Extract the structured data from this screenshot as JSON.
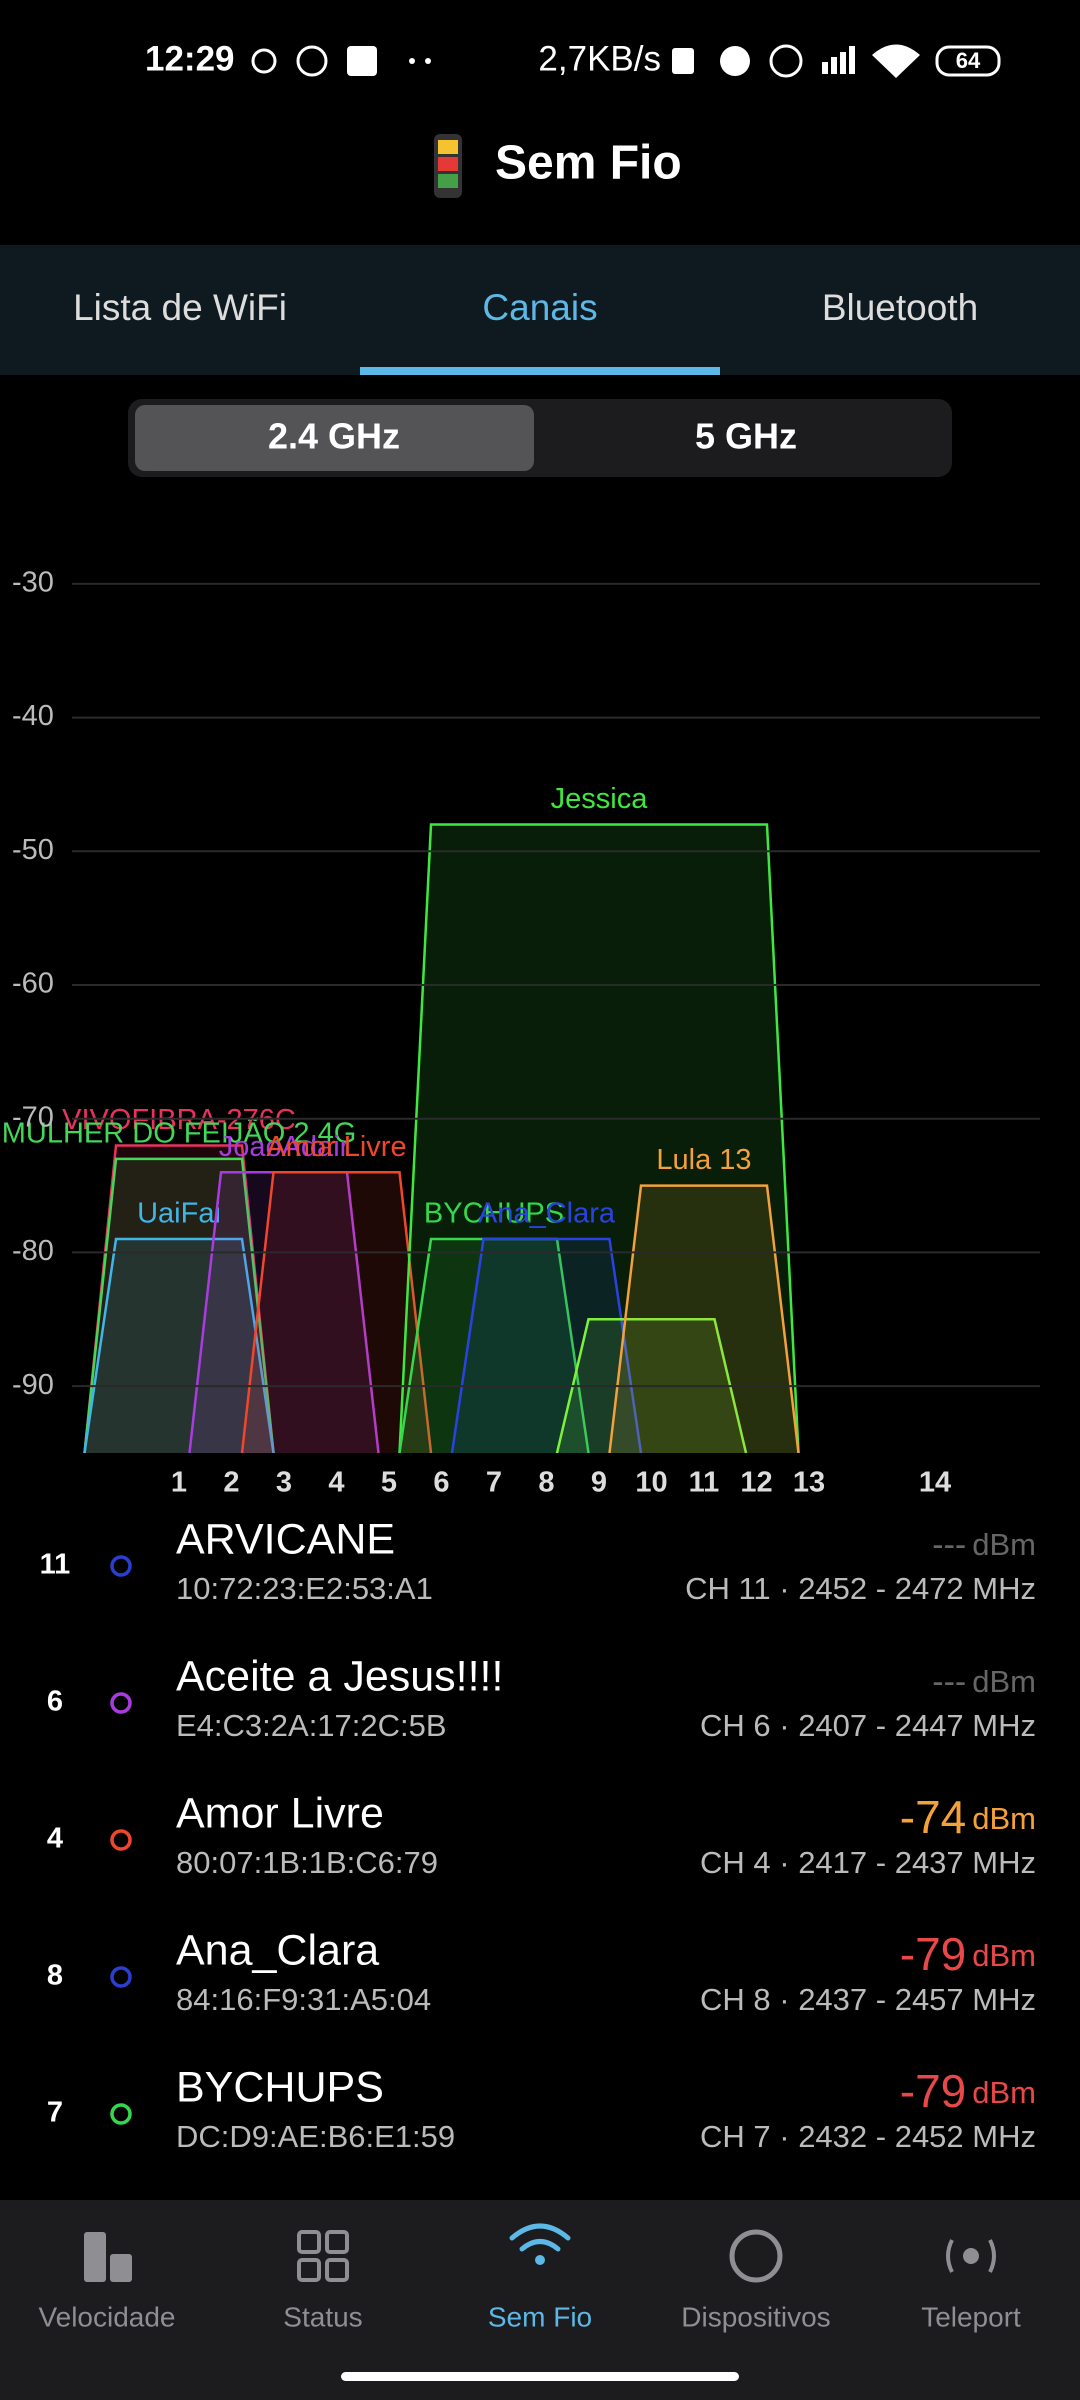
{
  "status_bar": {
    "time": "12:29",
    "speed": "2,7KB/s",
    "battery": "64"
  },
  "header": {
    "title": "Sem Fio"
  },
  "tabs": [
    "Lista de WiFi",
    "Canais",
    "Bluetooth"
  ],
  "bands": [
    "2.4 GHz",
    "5 GHz"
  ],
  "chart_data": {
    "type": "channel",
    "xlim": [
      2402,
      2494
    ],
    "xticks": [
      {
        "value": 2412,
        "label": "1"
      },
      {
        "value": 2417,
        "label": "2"
      },
      {
        "value": 2422,
        "label": "3"
      },
      {
        "value": 2427,
        "label": "4"
      },
      {
        "value": 2432,
        "label": "5"
      },
      {
        "value": 2437,
        "label": "6"
      },
      {
        "value": 2442,
        "label": "7"
      },
      {
        "value": 2447,
        "label": "8"
      },
      {
        "value": 2452,
        "label": "9"
      },
      {
        "value": 2457,
        "label": "10"
      },
      {
        "value": 2462,
        "label": "11"
      },
      {
        "value": 2467,
        "label": "12"
      },
      {
        "value": 2472,
        "label": "13"
      },
      {
        "value": 2484,
        "label": "14"
      }
    ],
    "ylim": [
      -95,
      -25
    ],
    "yticks": [
      -30,
      -40,
      -50,
      -60,
      -70,
      -80,
      -90
    ],
    "grid": true,
    "series": [
      {
        "name": "VIVOFIBRA-276C",
        "color": "#e8325e",
        "x": 2412,
        "width": 20,
        "value": -72
      },
      {
        "name": "MULHER DO FEIJÃO 2.4G",
        "color": "#43d657",
        "x": 2412,
        "width": 20,
        "value": -73
      },
      {
        "name": "UaiFai",
        "color": "#3fb6e8",
        "x": 2412,
        "width": 20,
        "value": -79
      },
      {
        "name": "JoaoAdair",
        "color": "#a93ce0",
        "x": 2422,
        "width": 20,
        "value": -74
      },
      {
        "name": "Amor Livre",
        "color": "#f0462b",
        "x": 2427,
        "width": 20,
        "value": -74
      },
      {
        "name": "Jessica",
        "color": "#3ee83e",
        "x": 2452,
        "width": 40,
        "value": -48
      },
      {
        "name": "BYCHUPS",
        "color": "#35d84c",
        "x": 2442,
        "width": 20,
        "value": -79
      },
      {
        "name": "Ana_Clara",
        "color": "#2a43e0",
        "x": 2447,
        "width": 20,
        "value": -79
      },
      {
        "name": null,
        "color": "#7ef23a",
        "x": 2457,
        "width": 20,
        "value": -85
      },
      {
        "name": "Lula 13",
        "color": "#f5a13a",
        "x": 2462,
        "width": 20,
        "value": -75
      }
    ]
  },
  "networks": [
    {
      "channel": 11,
      "color": "#2a3fd1",
      "name": "ARVICANE",
      "mac": "10:72:23:E2:53:A1",
      "signal": "---",
      "unit": "dBm",
      "info": "CH 11 · 2452 - 2472 MHz"
    },
    {
      "channel": 6,
      "color": "#a93ce0",
      "name": "Aceite a Jesus!!!!",
      "mac": "E4:C3:2A:17:2C:5B",
      "signal": "---",
      "unit": "dBm",
      "info": "CH 6 · 2407 - 2447 MHz"
    },
    {
      "channel": 4,
      "color": "#f0462b",
      "name": "Amor Livre",
      "mac": "80:07:1B:1B:C6:79",
      "signal": -74,
      "unit": "dBm",
      "info": "CH 4 · 2417 - 2437 MHz"
    },
    {
      "channel": 8,
      "color": "#2a3fd1",
      "name": "Ana_Clara",
      "mac": "84:16:F9:31:A5:04",
      "signal": -79,
      "unit": "dBm",
      "info": "CH 8 · 2437 - 2457 MHz"
    },
    {
      "channel": 7,
      "color": "#35d84c",
      "name": "BYCHUPS",
      "mac": "DC:D9:AE:B6:E1:59",
      "signal": -79,
      "unit": "dBm",
      "info": "CH 7 · 2432 - 2452 MHz"
    }
  ],
  "nav": [
    "Velocidade",
    "Status",
    "Sem Fio",
    "Dispositivos",
    "Teleport"
  ]
}
